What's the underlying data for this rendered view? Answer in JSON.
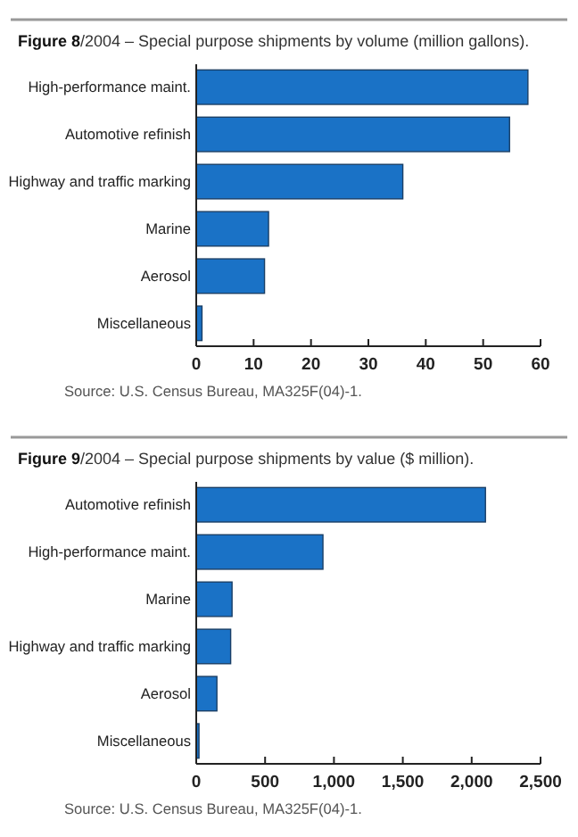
{
  "chart_data": [
    {
      "type": "bar",
      "orientation": "horizontal",
      "title": "Figure 8/2004 – Special purpose shipments by volume (million gallons).",
      "categories": [
        "High-performance maint.",
        "Automotive refinish",
        "Highway and traffic marking",
        "Marine",
        "Aerosol",
        "Miscellaneous"
      ],
      "values": [
        57.8,
        54.6,
        36.0,
        12.6,
        11.9,
        1.0
      ],
      "color": "#1a72c6",
      "xlim": [
        0,
        60
      ],
      "xticks": [
        0,
        10,
        20,
        30,
        40,
        50,
        60
      ],
      "grid": false,
      "annotations": [
        "Source: U.S. Census Bureau, MA325F(04)-1."
      ]
    },
    {
      "type": "bar",
      "orientation": "horizontal",
      "title": "Figure 9/2004 – Special purpose shipments by value ($ million).",
      "categories": [
        "Automotive refinish",
        "High-performance maint.",
        "Marine",
        "Highway and traffic marking",
        "Aerosol",
        "Miscellaneous"
      ],
      "values": [
        2100,
        920,
        260,
        250,
        150,
        20
      ],
      "color": "#1a72c6",
      "xlim": [
        0,
        2500
      ],
      "xticks": [
        0,
        500,
        {
          "value": 1000,
          "label": "1,000"
        },
        {
          "value": 1500,
          "label": "1,500"
        },
        {
          "value": 2000,
          "label": "2,000"
        },
        {
          "value": 2500,
          "label": "2,500"
        }
      ],
      "grid": false,
      "annotations": [
        "Source: U.S. Census Bureau, MA325F(04)-1."
      ]
    }
  ]
}
